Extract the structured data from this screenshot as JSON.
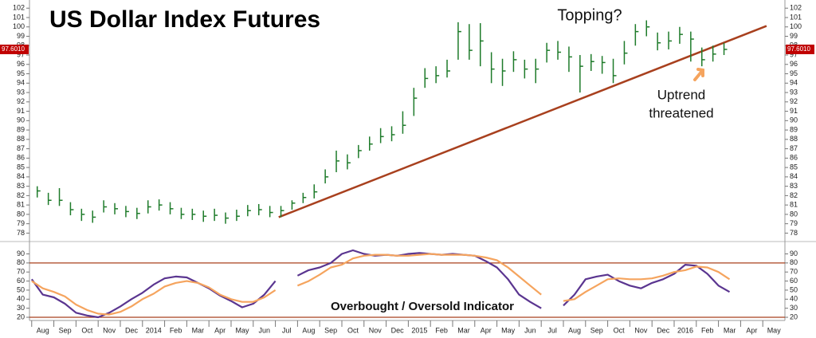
{
  "chart_data": [
    {
      "type": "ohlc",
      "title": "US Dollar Index Futures",
      "annotations": [
        "Topping?",
        "Uptrend",
        "threatened"
      ],
      "x": [
        0.25,
        0.75,
        1.25,
        1.75,
        2.25,
        2.75,
        3.25,
        3.75,
        4.25,
        4.75,
        5.25,
        5.75,
        6.25,
        6.75,
        7.25,
        7.75,
        8.25,
        8.75,
        9.25,
        9.75,
        10.25,
        10.75,
        11.25,
        11.75,
        12.25,
        12.75,
        13.25,
        13.75,
        14.25,
        14.75,
        15.25,
        15.75,
        16.25,
        16.75,
        17.25,
        17.75,
        18.25,
        18.75,
        19.25,
        19.75,
        20.25,
        20.75,
        21.25,
        21.75,
        22.25,
        22.75,
        23.25,
        23.75,
        24.25,
        24.75,
        25.25,
        25.75,
        26.25,
        26.75,
        27.25,
        27.75,
        28.25,
        28.75,
        29.25,
        29.75,
        30.25,
        30.75,
        31.25
      ],
      "high": [
        83.0,
        82.3,
        82.8,
        81.3,
        80.6,
        80.4,
        81.5,
        81.2,
        80.9,
        80.7,
        81.5,
        81.6,
        81.3,
        80.7,
        80.6,
        80.4,
        80.6,
        80.2,
        80.5,
        81.0,
        81.1,
        80.9,
        80.9,
        81.5,
        82.3,
        83.2,
        84.8,
        86.8,
        86.4,
        87.4,
        88.3,
        89.2,
        89.4,
        91.0,
        93.5,
        95.6,
        95.8,
        96.5,
        100.5,
        100.3,
        100.4,
        97.3,
        96.6,
        97.4,
        96.5,
        96.6,
        98.3,
        98.5,
        97.9,
        97.0,
        97.1,
        96.9,
        96.6,
        98.5,
        100.3,
        100.7,
        99.4,
        99.5,
        100.0,
        99.5,
        97.8,
        98.0,
        98.3
      ],
      "low": [
        81.8,
        81.0,
        80.9,
        79.9,
        79.3,
        79.1,
        80.2,
        80.0,
        79.7,
        79.5,
        80.1,
        80.4,
        80.0,
        79.5,
        79.4,
        79.2,
        79.3,
        79.0,
        79.3,
        79.8,
        79.9,
        79.7,
        79.7,
        80.5,
        81.2,
        81.7,
        83.3,
        84.5,
        84.8,
        86.0,
        86.8,
        87.6,
        87.8,
        88.6,
        90.5,
        93.5,
        94.0,
        94.6,
        96.5,
        96.5,
        95.8,
        94.0,
        93.7,
        95.2,
        94.5,
        94.0,
        96.2,
        96.5,
        95.2,
        93.0,
        95.3,
        95.0,
        94.0,
        96.0,
        98.0,
        99.0,
        97.5,
        97.6,
        98.2,
        96.3,
        95.8,
        96.3,
        97.0
      ],
      "close": [
        82.5,
        81.5,
        81.5,
        80.5,
        80.0,
        79.7,
        80.8,
        80.6,
        80.3,
        80.1,
        80.8,
        81.0,
        80.6,
        80.0,
        80.0,
        79.8,
        79.9,
        79.6,
        79.8,
        80.4,
        80.5,
        80.2,
        80.4,
        81.2,
        81.8,
        82.4,
        84.0,
        85.7,
        85.5,
        86.8,
        87.5,
        88.3,
        88.5,
        89.5,
        92.4,
        94.5,
        94.8,
        95.3,
        99.5,
        97.5,
        98.5,
        95.5,
        95.3,
        96.5,
        95.5,
        95.5,
        97.5,
        97.3,
        96.8,
        95.8,
        96.3,
        96.2,
        94.8,
        97.2,
        99.5,
        100.0,
        98.3,
        98.5,
        99.2,
        98.7,
        96.5,
        97.1,
        97.6
      ],
      "color": "#1e7b2a",
      "trendline": {
        "color": "#a8401e",
        "points": [
          [
            11.15,
            79.7
          ],
          [
            33.17,
            100.1
          ]
        ]
      },
      "last_value": {
        "value": 97.601,
        "label": "97.6010"
      },
      "xlim": [
        -0.1,
        34
      ],
      "ylim": [
        77.1,
        102.7
      ],
      "yticks": [
        78,
        79,
        80,
        81,
        82,
        83,
        84,
        85,
        86,
        87,
        88,
        89,
        90,
        91,
        92,
        93,
        94,
        95,
        96,
        97,
        98,
        99,
        100,
        101,
        102
      ]
    },
    {
      "type": "line",
      "annotation": "Overbought / Oversold Indicator",
      "x": [
        0,
        0.5,
        1,
        1.5,
        2,
        2.5,
        3,
        3.5,
        4,
        4.5,
        5,
        5.5,
        6,
        6.5,
        7,
        7.5,
        8,
        8.5,
        9,
        9.5,
        10,
        10.5,
        11,
        11.5,
        12,
        12.5,
        13,
        13.5,
        14,
        14.5,
        15,
        15.5,
        16,
        16.5,
        17,
        17.5,
        18,
        18.5,
        19,
        19.5,
        20,
        20.5,
        21,
        21.5,
        22,
        22.5,
        23,
        23.5,
        24,
        24.5,
        25,
        25.5,
        26,
        26.5,
        27,
        27.5,
        28,
        28.5,
        29,
        29.5,
        30,
        30.5,
        31,
        31.5
      ],
      "series": [
        {
          "color": "#5a3590",
          "values": [
            62,
            45,
            42,
            35,
            25,
            22,
            20,
            25,
            32,
            40,
            47,
            56,
            63,
            65,
            64,
            58,
            52,
            44,
            38,
            31,
            35,
            45,
            60,
            null,
            66,
            72,
            75,
            80,
            90,
            94,
            90,
            88,
            89,
            88,
            90,
            91,
            90,
            89,
            90,
            89,
            88,
            82,
            75,
            62,
            45,
            37,
            30,
            null,
            33,
            45,
            62,
            65,
            67,
            60,
            55,
            52,
            58,
            62,
            68,
            78,
            77,
            68,
            55,
            48
          ]
        },
        {
          "color": "#f5a45e",
          "values": [
            60,
            52,
            48,
            43,
            34,
            28,
            24,
            23,
            26,
            32,
            40,
            46,
            54,
            58,
            60,
            58,
            53,
            45,
            40,
            37,
            37,
            42,
            50,
            null,
            55,
            60,
            67,
            75,
            78,
            85,
            88,
            89,
            89,
            88,
            88,
            89,
            90,
            89,
            89,
            89,
            88,
            86,
            83,
            75,
            65,
            55,
            45,
            null,
            38,
            40,
            48,
            55,
            62,
            63,
            62,
            62,
            63,
            66,
            70,
            72,
            76,
            75,
            70,
            62
          ]
        }
      ],
      "levels": [
        80,
        20
      ],
      "level_color": "#a8401e",
      "xlim": [
        -0.1,
        34
      ],
      "xticks": [
        {
          "value": 0,
          "label": "Aug"
        },
        {
          "value": 1,
          "label": "Sep"
        },
        {
          "value": 2,
          "label": "Oct"
        },
        {
          "value": 3,
          "label": "Nov"
        },
        {
          "value": 4,
          "label": "Dec"
        },
        {
          "value": 5,
          "label": "2014"
        },
        {
          "value": 6,
          "label": "Feb"
        },
        {
          "value": 7,
          "label": "Mar"
        },
        {
          "value": 8,
          "label": "Apr"
        },
        {
          "value": 9,
          "label": "May"
        },
        {
          "value": 10,
          "label": "Jun"
        },
        {
          "value": 11,
          "label": "Jul"
        },
        {
          "value": 12,
          "label": "Aug"
        },
        {
          "value": 13,
          "label": "Sep"
        },
        {
          "value": 14,
          "label": "Oct"
        },
        {
          "value": 15,
          "label": "Nov"
        },
        {
          "value": 16,
          "label": "Dec"
        },
        {
          "value": 17,
          "label": "2015"
        },
        {
          "value": 18,
          "label": "Feb"
        },
        {
          "value": 19,
          "label": "Mar"
        },
        {
          "value": 20,
          "label": "Apr"
        },
        {
          "value": 21,
          "label": "May"
        },
        {
          "value": 22,
          "label": "Jun"
        },
        {
          "value": 23,
          "label": "Jul"
        },
        {
          "value": 24,
          "label": "Aug"
        },
        {
          "value": 25,
          "label": "Sep"
        },
        {
          "value": 26,
          "label": "Oct"
        },
        {
          "value": 27,
          "label": "Nov"
        },
        {
          "value": 28,
          "label": "Dec"
        },
        {
          "value": 29,
          "label": "2016"
        },
        {
          "value": 30,
          "label": "Feb"
        },
        {
          "value": 31,
          "label": "Mar"
        },
        {
          "value": 32,
          "label": "Apr"
        },
        {
          "value": 33,
          "label": "May"
        }
      ],
      "ylim": [
        16.5,
        101
      ],
      "yticks": [
        20,
        30,
        40,
        50,
        60,
        70,
        80,
        90
      ]
    }
  ]
}
